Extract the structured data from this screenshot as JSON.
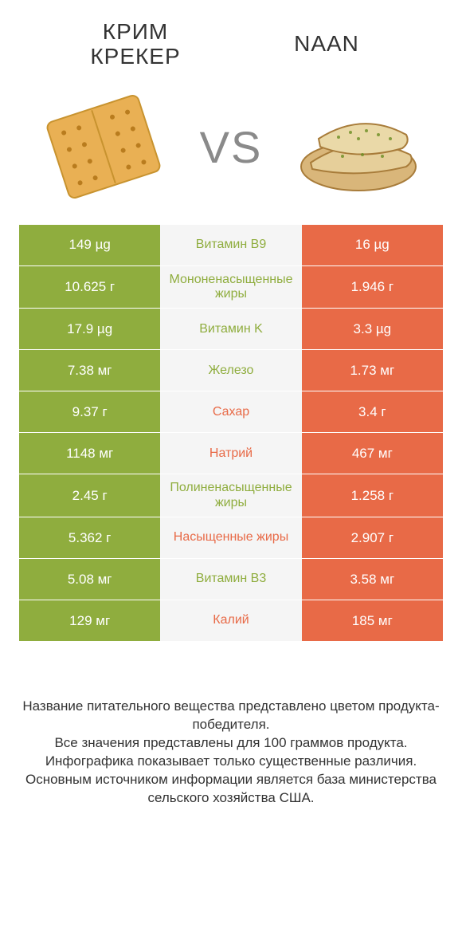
{
  "colors": {
    "left": "#8fad3e",
    "right": "#e86a47",
    "mid_bg": "#f5f5f5",
    "text_dark": "#333333"
  },
  "header": {
    "left_title_line1": "КРИМ",
    "left_title_line2": "КРЕКЕР",
    "right_title": "NAAN",
    "vs": "VS"
  },
  "rows": [
    {
      "left": "149 µg",
      "name": "Витамин B9",
      "right": "16 µg",
      "winner": "left"
    },
    {
      "left": "10.625 г",
      "name": "Мононенасыщенные жиры",
      "right": "1.946 г",
      "winner": "left"
    },
    {
      "left": "17.9 µg",
      "name": "Витамин K",
      "right": "3.3 µg",
      "winner": "left"
    },
    {
      "left": "7.38 мг",
      "name": "Железо",
      "right": "1.73 мг",
      "winner": "left"
    },
    {
      "left": "9.37 г",
      "name": "Сахар",
      "right": "3.4 г",
      "winner": "right"
    },
    {
      "left": "1148 мг",
      "name": "Натрий",
      "right": "467 мг",
      "winner": "right"
    },
    {
      "left": "2.45 г",
      "name": "Полиненасыщенные жиры",
      "right": "1.258 г",
      "winner": "left"
    },
    {
      "left": "5.362 г",
      "name": "Насыщенные жиры",
      "right": "2.907 г",
      "winner": "right"
    },
    {
      "left": "5.08 мг",
      "name": "Витамин B3",
      "right": "3.58 мг",
      "winner": "left"
    },
    {
      "left": "129 мг",
      "name": "Калий",
      "right": "185 мг",
      "winner": "right"
    }
  ],
  "footer": {
    "line1": "Название питательного вещества представлено цветом продукта-победителя.",
    "line2": "Все значения представлены для 100 граммов продукта.",
    "line3": "Инфографика показывает только существенные различия.",
    "line4": "Основным источником информации является база министерства сельского хозяйства США."
  }
}
